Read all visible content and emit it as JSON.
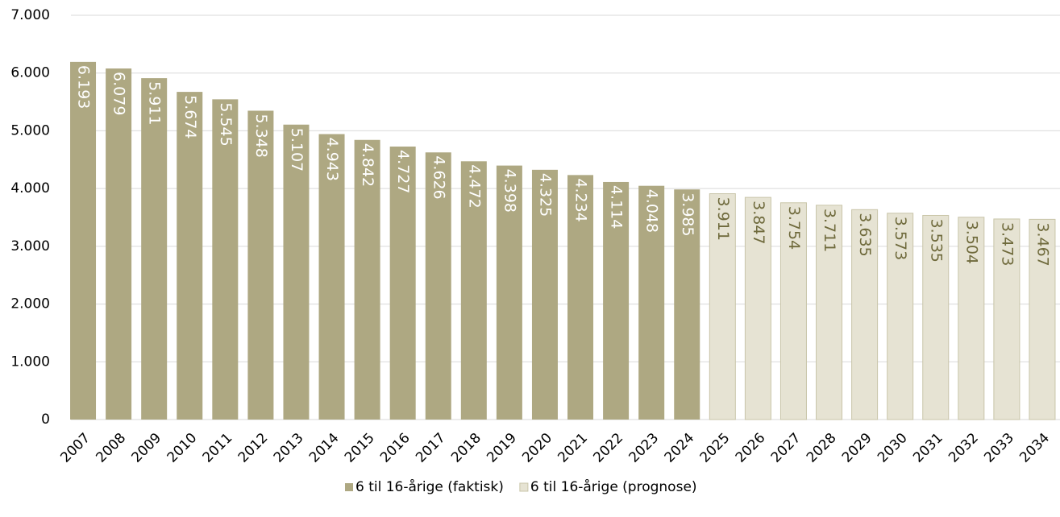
{
  "chart_data": {
    "type": "bar",
    "categories": [
      "2007",
      "2008",
      "2009",
      "2010",
      "2011",
      "2012",
      "2013",
      "2014",
      "2015",
      "2016",
      "2017",
      "2018",
      "2019",
      "2020",
      "2021",
      "2022",
      "2023",
      "2024",
      "2025",
      "2026",
      "2027",
      "2028",
      "2029",
      "2030",
      "2031",
      "2032",
      "2033",
      "2034"
    ],
    "series": [
      {
        "name": "6 til 16-årige (faktisk)",
        "color": "#aea882",
        "label_color": "#ffffff",
        "values": [
          6193,
          6079,
          5911,
          5674,
          5545,
          5348,
          5107,
          4943,
          4842,
          4727,
          4626,
          4472,
          4398,
          4325,
          4234,
          4114,
          4048,
          3985,
          null,
          null,
          null,
          null,
          null,
          null,
          null,
          null,
          null,
          null
        ],
        "value_labels": [
          "6.193",
          "6.079",
          "5.911",
          "5.674",
          "5.545",
          "5.348",
          "5.107",
          "4.943",
          "4.842",
          "4.727",
          "4.626",
          "4.472",
          "4.398",
          "4.325",
          "4.234",
          "4.114",
          "4.048",
          "3.985",
          null,
          null,
          null,
          null,
          null,
          null,
          null,
          null,
          null,
          null
        ]
      },
      {
        "name": "6 til 16-årige (prognose)",
        "color": "#e6e3d3",
        "label_color": "#6f6a3c",
        "values": [
          null,
          null,
          null,
          null,
          null,
          null,
          null,
          null,
          null,
          null,
          null,
          null,
          null,
          null,
          null,
          null,
          null,
          null,
          3911,
          3847,
          3754,
          3711,
          3635,
          3573,
          3535,
          3504,
          3473,
          3467
        ],
        "value_labels": [
          null,
          null,
          null,
          null,
          null,
          null,
          null,
          null,
          null,
          null,
          null,
          null,
          null,
          null,
          null,
          null,
          null,
          null,
          "3.911",
          "3.847",
          "3.754",
          "3.711",
          "3.635",
          "3.573",
          "3.535",
          "3.504",
          "3.473",
          "3.467"
        ]
      }
    ],
    "ylim": [
      0,
      7000
    ],
    "yticks": [
      0,
      {
        "value": 1000,
        "label": "1.000"
      },
      {
        "value": 2000,
        "label": "2.000"
      },
      {
        "value": 3000,
        "label": "3.000"
      },
      {
        "value": 4000,
        "label": "4.000"
      },
      {
        "value": 5000,
        "label": "5.000"
      },
      {
        "value": 6000,
        "label": "6.000"
      },
      {
        "value": 7000,
        "label": "7.000"
      }
    ],
    "grid": true,
    "legend": "bottom"
  }
}
